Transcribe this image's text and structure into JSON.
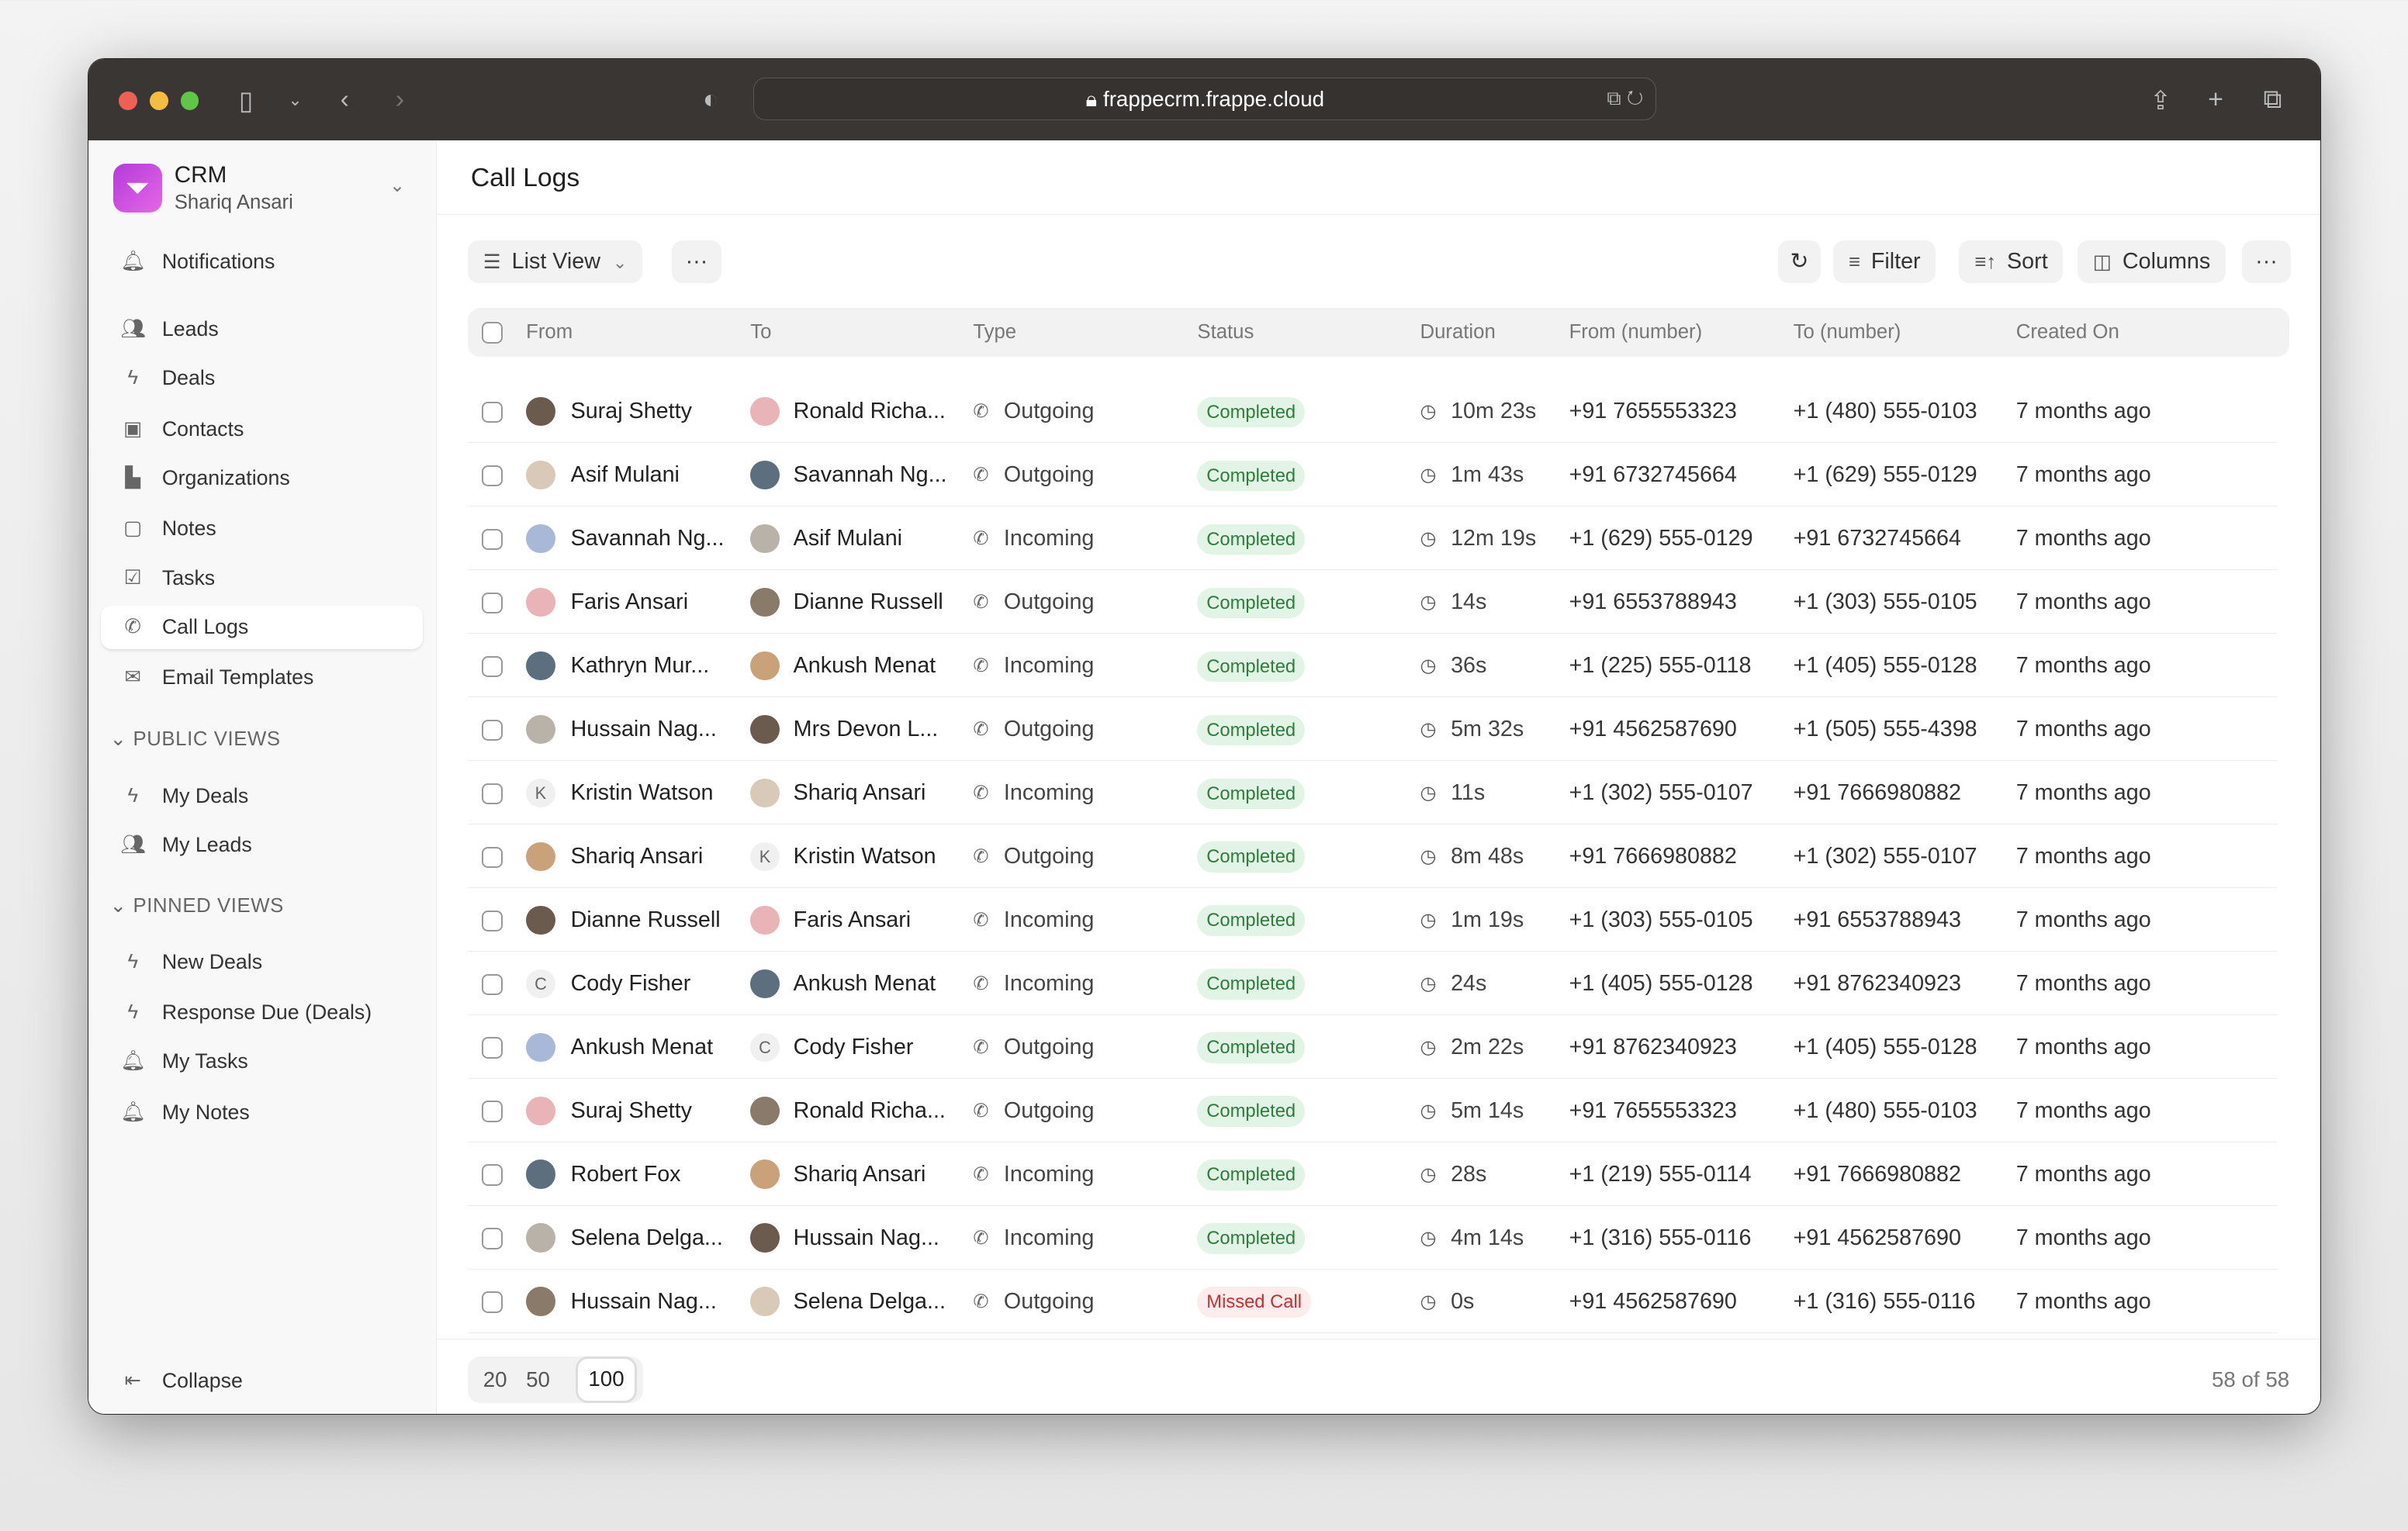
{
  "browser": {
    "url": "frappecrm.frappe.cloud"
  },
  "sidebar": {
    "app": "CRM",
    "user": "Shariq Ansari",
    "items": [
      {
        "label": "Notifications",
        "icon": "bell-icon"
      },
      {
        "label": "Leads",
        "icon": "users-icon"
      },
      {
        "label": "Deals",
        "icon": "lightning-icon"
      },
      {
        "label": "Contacts",
        "icon": "contact-card-icon"
      },
      {
        "label": "Organizations",
        "icon": "building-icon"
      },
      {
        "label": "Notes",
        "icon": "note-icon"
      },
      {
        "label": "Tasks",
        "icon": "checkbox-icon"
      },
      {
        "label": "Call Logs",
        "icon": "phone-icon"
      },
      {
        "label": "Email Templates",
        "icon": "mail-icon"
      }
    ],
    "public_views_label": "PUBLIC VIEWS",
    "public_views": [
      {
        "label": "My Deals",
        "icon": "lightning-icon"
      },
      {
        "label": "My Leads",
        "icon": "users-icon"
      }
    ],
    "pinned_views_label": "PINNED VIEWS",
    "pinned_views": [
      {
        "label": "New Deals",
        "icon": "lightning-icon"
      },
      {
        "label": "Response Due (Deals)",
        "icon": "lightning-icon"
      },
      {
        "label": "My Tasks",
        "icon": "bell-icon"
      },
      {
        "label": "My Notes",
        "icon": "bell-icon"
      }
    ],
    "collapse": "Collapse"
  },
  "page": {
    "title": "Call Logs"
  },
  "toolbar": {
    "view": "List View",
    "filter": "Filter",
    "sort": "Sort",
    "columns": "Columns"
  },
  "table": {
    "columns": [
      "From",
      "To",
      "Type",
      "Status",
      "Duration",
      "From (number)",
      "To (number)",
      "Created On"
    ],
    "rows": [
      [
        "Suraj Shetty",
        "Ronald Richa...",
        "Outgoing",
        "Completed",
        "10m 23s",
        "+91 7655553323",
        "+1 (480) 555-0103",
        "7 months ago"
      ],
      [
        "Asif Mulani",
        "Savannah Ng...",
        "Outgoing",
        "Completed",
        "1m 43s",
        "+91 6732745664",
        "+1 (629) 555-0129",
        "7 months ago"
      ],
      [
        "Savannah Ng...",
        "Asif Mulani",
        "Incoming",
        "Completed",
        "12m 19s",
        "+1 (629) 555-0129",
        "+91 6732745664",
        "7 months ago"
      ],
      [
        "Faris Ansari",
        "Dianne Russell",
        "Outgoing",
        "Completed",
        "14s",
        "+91 6553788943",
        "+1 (303) 555-0105",
        "7 months ago"
      ],
      [
        "Kathryn Mur...",
        "Ankush Menat",
        "Incoming",
        "Completed",
        "36s",
        "+1 (225) 555-0118",
        "+1 (405) 555-0128",
        "7 months ago"
      ],
      [
        "Hussain Nag...",
        "Mrs Devon L...",
        "Outgoing",
        "Completed",
        "5m 32s",
        "+91 4562587690",
        "+1 (505) 555-4398",
        "7 months ago"
      ],
      [
        "Kristin Watson",
        "Shariq Ansari",
        "Incoming",
        "Completed",
        "11s",
        "+1 (302) 555-0107",
        "+91 7666980882",
        "7 months ago"
      ],
      [
        "Shariq Ansari",
        "Kristin Watson",
        "Outgoing",
        "Completed",
        "8m 48s",
        "+91 7666980882",
        "+1 (302) 555-0107",
        "7 months ago"
      ],
      [
        "Dianne Russell",
        "Faris Ansari",
        "Incoming",
        "Completed",
        "1m 19s",
        "+1 (303) 555-0105",
        "+91 6553788943",
        "7 months ago"
      ],
      [
        "Cody Fisher",
        "Ankush Menat",
        "Incoming",
        "Completed",
        "24s",
        "+1 (405) 555-0128",
        "+91 8762340923",
        "7 months ago"
      ],
      [
        "Ankush Menat",
        "Cody Fisher",
        "Outgoing",
        "Completed",
        "2m 22s",
        "+91 8762340923",
        "+1 (405) 555-0128",
        "7 months ago"
      ],
      [
        "Suraj Shetty",
        "Ronald Richa...",
        "Outgoing",
        "Completed",
        "5m 14s",
        "+91 7655553323",
        "+1 (480) 555-0103",
        "7 months ago"
      ],
      [
        "Robert Fox",
        "Shariq Ansari",
        "Incoming",
        "Completed",
        "28s",
        "+1 (219) 555-0114",
        "+91 7666980882",
        "7 months ago"
      ],
      [
        "Selena Delga...",
        "Hussain Nag...",
        "Incoming",
        "Completed",
        "4m 14s",
        "+1 (316) 555-0116",
        "+91 4562587690",
        "7 months ago"
      ],
      [
        "Hussain Nag...",
        "Selena Delga...",
        "Outgoing",
        "Missed Call",
        "0s",
        "+91 4562587690",
        "+1 (316) 555-0116",
        "7 months ago"
      ]
    ]
  },
  "letter_avatars": {
    "Kristin Watson": "K",
    "Cody Fisher": "C"
  },
  "status_colors": {
    "Completed": {
      "bg": "#e2f4e5",
      "fg": "#2f7d3b"
    },
    "Missed Call": {
      "bg": "#fdecec",
      "fg": "#c53030"
    }
  },
  "pagination": {
    "options": [
      "20",
      "50",
      "100"
    ],
    "selected": "100",
    "count": "58 of 58"
  }
}
